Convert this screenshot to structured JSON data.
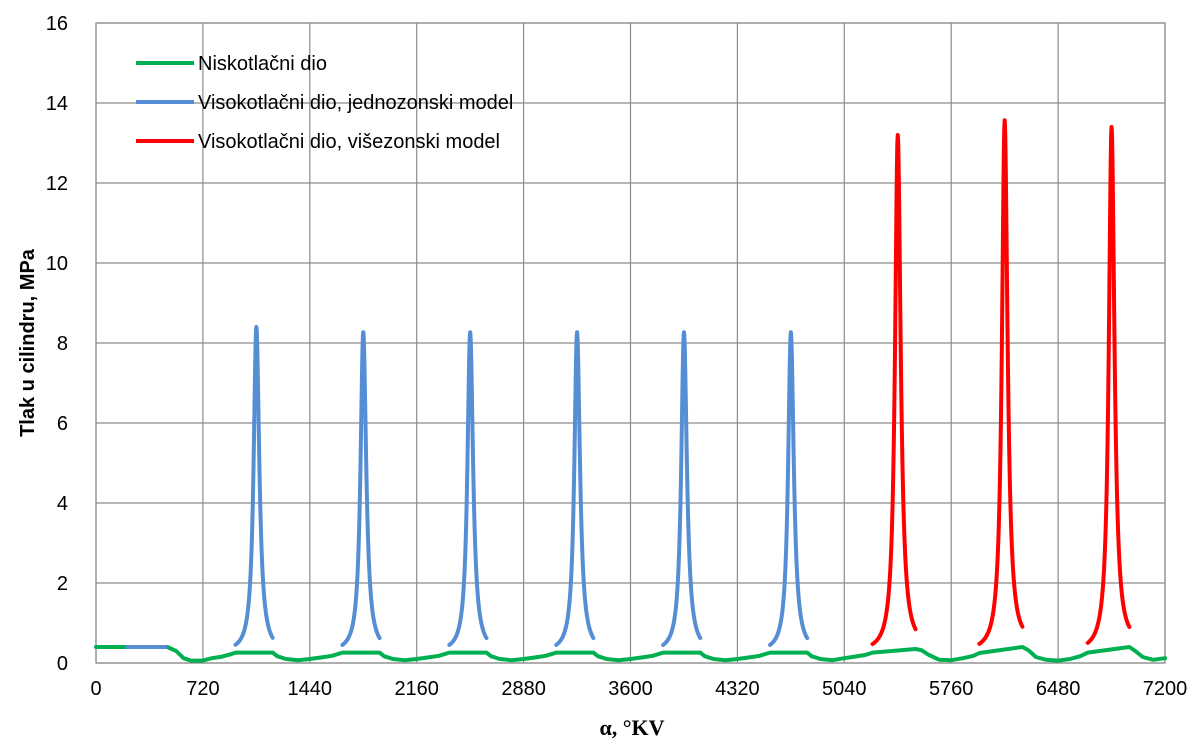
{
  "chart_data": {
    "type": "line",
    "title": "",
    "xlabel": "α, °KV",
    "ylabel": "Tlak u cilindru, MPa",
    "xlim": [
      0,
      7200
    ],
    "ylim": [
      0,
      16
    ],
    "x_ticks": [
      0,
      720,
      1440,
      2160,
      2880,
      3600,
      4320,
      5040,
      5760,
      6480,
      7200
    ],
    "y_ticks": [
      0,
      2,
      4,
      6,
      8,
      10,
      12,
      14,
      16
    ],
    "grid": true,
    "legend_position": "top-left",
    "series": [
      {
        "name": "Niskotlačni dio",
        "color": "#00b050",
        "points": [
          [
            0,
            0.4
          ],
          [
            200,
            0.4
          ],
          [
            480,
            0.4
          ],
          [
            540,
            0.3
          ],
          [
            590,
            0.12
          ],
          [
            640,
            0.06
          ],
          [
            720,
            0.06
          ],
          [
            780,
            0.12
          ],
          [
            850,
            0.16
          ],
          [
            900,
            0.21
          ],
          [
            940,
            0.26
          ],
          [
            1190,
            0.26
          ],
          [
            1220,
            0.17
          ],
          [
            1280,
            0.1
          ],
          [
            1360,
            0.07
          ],
          [
            1440,
            0.1
          ],
          [
            1520,
            0.14
          ],
          [
            1590,
            0.18
          ],
          [
            1660,
            0.26
          ],
          [
            1910,
            0.26
          ],
          [
            1940,
            0.17
          ],
          [
            2000,
            0.1
          ],
          [
            2080,
            0.07
          ],
          [
            2160,
            0.1
          ],
          [
            2240,
            0.14
          ],
          [
            2310,
            0.18
          ],
          [
            2380,
            0.26
          ],
          [
            2630,
            0.26
          ],
          [
            2660,
            0.17
          ],
          [
            2720,
            0.1
          ],
          [
            2800,
            0.07
          ],
          [
            2880,
            0.1
          ],
          [
            2960,
            0.14
          ],
          [
            3030,
            0.18
          ],
          [
            3100,
            0.26
          ],
          [
            3350,
            0.26
          ],
          [
            3380,
            0.17
          ],
          [
            3440,
            0.1
          ],
          [
            3520,
            0.07
          ],
          [
            3600,
            0.1
          ],
          [
            3680,
            0.14
          ],
          [
            3750,
            0.18
          ],
          [
            3820,
            0.26
          ],
          [
            4070,
            0.26
          ],
          [
            4100,
            0.17
          ],
          [
            4160,
            0.1
          ],
          [
            4240,
            0.07
          ],
          [
            4320,
            0.1
          ],
          [
            4400,
            0.14
          ],
          [
            4470,
            0.18
          ],
          [
            4540,
            0.26
          ],
          [
            4790,
            0.26
          ],
          [
            4820,
            0.17
          ],
          [
            4880,
            0.1
          ],
          [
            4960,
            0.07
          ],
          [
            5040,
            0.12
          ],
          [
            5110,
            0.16
          ],
          [
            5180,
            0.2
          ],
          [
            5230,
            0.26
          ],
          [
            5520,
            0.35
          ],
          [
            5560,
            0.32
          ],
          [
            5610,
            0.2
          ],
          [
            5680,
            0.08
          ],
          [
            5760,
            0.07
          ],
          [
            5840,
            0.12
          ],
          [
            5910,
            0.18
          ],
          [
            5950,
            0.25
          ],
          [
            6240,
            0.4
          ],
          [
            6280,
            0.32
          ],
          [
            6330,
            0.15
          ],
          [
            6400,
            0.08
          ],
          [
            6480,
            0.06
          ],
          [
            6560,
            0.1
          ],
          [
            6630,
            0.17
          ],
          [
            6680,
            0.26
          ],
          [
            6960,
            0.4
          ],
          [
            7000,
            0.3
          ],
          [
            7050,
            0.15
          ],
          [
            7120,
            0.08
          ],
          [
            7200,
            0.12
          ]
        ]
      },
      {
        "name": "Visokotlačni dio, jednozonski model",
        "color": "#558ed5",
        "segments": [
          [
            [
              200,
              0.4
            ],
            [
              480,
              0.4
            ]
          ]
        ],
        "peaks": [
          {
            "x": 1080,
            "y": 8.4,
            "x_start": 940,
            "x_end": 1190
          },
          {
            "x": 1800,
            "y": 8.27,
            "x_start": 1660,
            "x_end": 1910
          },
          {
            "x": 2520,
            "y": 8.27,
            "x_start": 2380,
            "x_end": 2630
          },
          {
            "x": 3240,
            "y": 8.27,
            "x_start": 3100,
            "x_end": 3350
          },
          {
            "x": 3960,
            "y": 8.27,
            "x_start": 3820,
            "x_end": 4070
          },
          {
            "x": 4680,
            "y": 8.27,
            "x_start": 4540,
            "x_end": 4790
          }
        ],
        "base": 0.26
      },
      {
        "name": "Visokotlačni dio, višezonski model",
        "color": "#ff0000",
        "peaks": [
          {
            "x": 5400,
            "y": 13.2,
            "x_start": 5230,
            "x_end": 5520,
            "end_y": 0.35
          },
          {
            "x": 6120,
            "y": 13.57,
            "x_start": 5950,
            "x_end": 6240,
            "end_y": 0.4
          },
          {
            "x": 6840,
            "y": 13.4,
            "x_start": 6680,
            "x_end": 6960,
            "end_y": 0.4
          }
        ],
        "base": 0.26
      }
    ]
  }
}
